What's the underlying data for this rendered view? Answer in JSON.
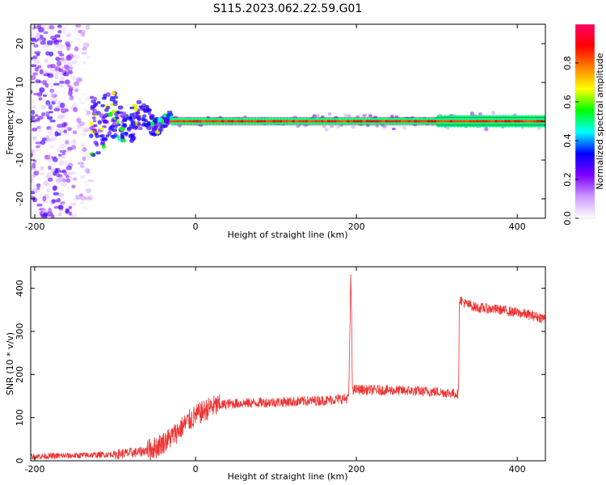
{
  "title": "S115.2023.062.22.59.G01",
  "chart_data": [
    {
      "type": "heatmap",
      "xlabel": "Height of straight line (km)",
      "ylabel": "Frequency (Hz)",
      "xlim": [
        -205,
        435
      ],
      "ylim": [
        -25,
        25
      ],
      "xticks": [
        -200,
        0,
        200,
        400
      ],
      "yticks": [
        -20,
        -10,
        0,
        10,
        20
      ],
      "xtick_labels": [
        "-200",
        "0",
        "200",
        "400"
      ],
      "ytick_labels": [
        "-20",
        "-10",
        "0",
        "10",
        "20"
      ],
      "colorbar": {
        "label": "Normalized spectral amplitude",
        "range": [
          0,
          1
        ],
        "ticks": [
          0.0,
          0.2,
          0.4,
          0.6,
          0.8
        ],
        "tick_labels": [
          "0.0",
          "0.2",
          "0.4",
          "0.6",
          "0.8"
        ],
        "colors": [
          "#ffffff",
          "#cc99ff",
          "#7f00ff",
          "#0000ff",
          "#00ffff",
          "#00ff00",
          "#ffff00",
          "#ff8000",
          "#ff0000",
          "#ff0066"
        ]
      },
      "features": [
        {
          "name": "scattered noise",
          "x_range": [
            -205,
            -170
          ],
          "freq_range": [
            -25,
            25
          ],
          "amplitude": 0.25
        },
        {
          "name": "fading noise",
          "x_range": [
            -170,
            -130
          ],
          "freq_range": [
            -25,
            25
          ],
          "amplitude": 0.15
        },
        {
          "name": "converging signal",
          "x_range": [
            -130,
            -30
          ],
          "freq_range": [
            -8,
            8
          ],
          "amplitude": 0.3
        },
        {
          "name": "carrier line",
          "x_range": [
            -30,
            435
          ],
          "freq_range": [
            -0.5,
            0.5
          ],
          "amplitude": 0.9
        }
      ],
      "grid": false
    },
    {
      "type": "line",
      "xlabel": "Height of straight line (km)",
      "ylabel": "SNR (10 * v/v)",
      "xlim": [
        -205,
        435
      ],
      "ylim": [
        0,
        450
      ],
      "xticks": [
        -200,
        0,
        200,
        400
      ],
      "yticks": [
        0,
        100,
        200,
        300,
        400
      ],
      "xtick_labels": [
        "-200",
        "0",
        "200",
        "400"
      ],
      "ytick_labels": [
        "0",
        "100",
        "200",
        "300",
        "400"
      ],
      "color": "#ee3333",
      "x": [
        -205,
        -150,
        -100,
        -70,
        -50,
        -30,
        -10,
        0,
        10,
        20,
        40,
        80,
        120,
        160,
        190,
        191,
        193,
        194,
        195,
        196,
        200,
        250,
        300,
        327,
        328,
        335,
        350,
        380,
        410,
        435
      ],
      "y": [
        10,
        12,
        15,
        20,
        30,
        55,
        90,
        105,
        115,
        125,
        132,
        135,
        137,
        140,
        145,
        195,
        430,
        330,
        170,
        165,
        165,
        163,
        160,
        155,
        375,
        365,
        355,
        350,
        340,
        330
      ],
      "noise": 12,
      "grid": false
    }
  ]
}
